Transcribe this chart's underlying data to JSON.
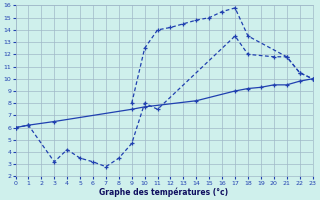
{
  "title": "Graphe des températures (°c)",
  "xlim": [
    0,
    23
  ],
  "ylim": [
    2,
    16
  ],
  "xticks": [
    0,
    1,
    2,
    3,
    4,
    5,
    6,
    7,
    8,
    9,
    10,
    11,
    12,
    13,
    14,
    15,
    16,
    17,
    18,
    19,
    20,
    21,
    22,
    23
  ],
  "yticks": [
    2,
    3,
    4,
    5,
    6,
    7,
    8,
    9,
    10,
    11,
    12,
    13,
    14,
    15,
    16
  ],
  "bg_color": "#cff0ec",
  "grid_color": "#a0b8c8",
  "line_color": "#2040b0",
  "line1_x": [
    0,
    1,
    3,
    9,
    10,
    14,
    17,
    18,
    19,
    20,
    21,
    22,
    23
  ],
  "line1_y": [
    6.0,
    6.2,
    6.5,
    7.5,
    7.7,
    8.2,
    9.0,
    9.2,
    9.3,
    9.5,
    9.5,
    9.8,
    10.0
  ],
  "line2_x": [
    0,
    1,
    3,
    4,
    5,
    6,
    7,
    8,
    9,
    10,
    11,
    17,
    18,
    20,
    21,
    22,
    23
  ],
  "line2_y": [
    6.0,
    6.2,
    3.2,
    4.2,
    3.5,
    3.2,
    2.8,
    3.5,
    4.7,
    8.0,
    7.5,
    13.5,
    12.0,
    11.8,
    11.8,
    10.5,
    10.0
  ],
  "line3_x": [
    9,
    10,
    11,
    12,
    13,
    14,
    15,
    16,
    17,
    18,
    21,
    22,
    23
  ],
  "line3_y": [
    8.0,
    12.5,
    14.0,
    14.2,
    14.5,
    14.8,
    15.0,
    15.5,
    15.8,
    13.5,
    11.8,
    10.5,
    10.0
  ]
}
